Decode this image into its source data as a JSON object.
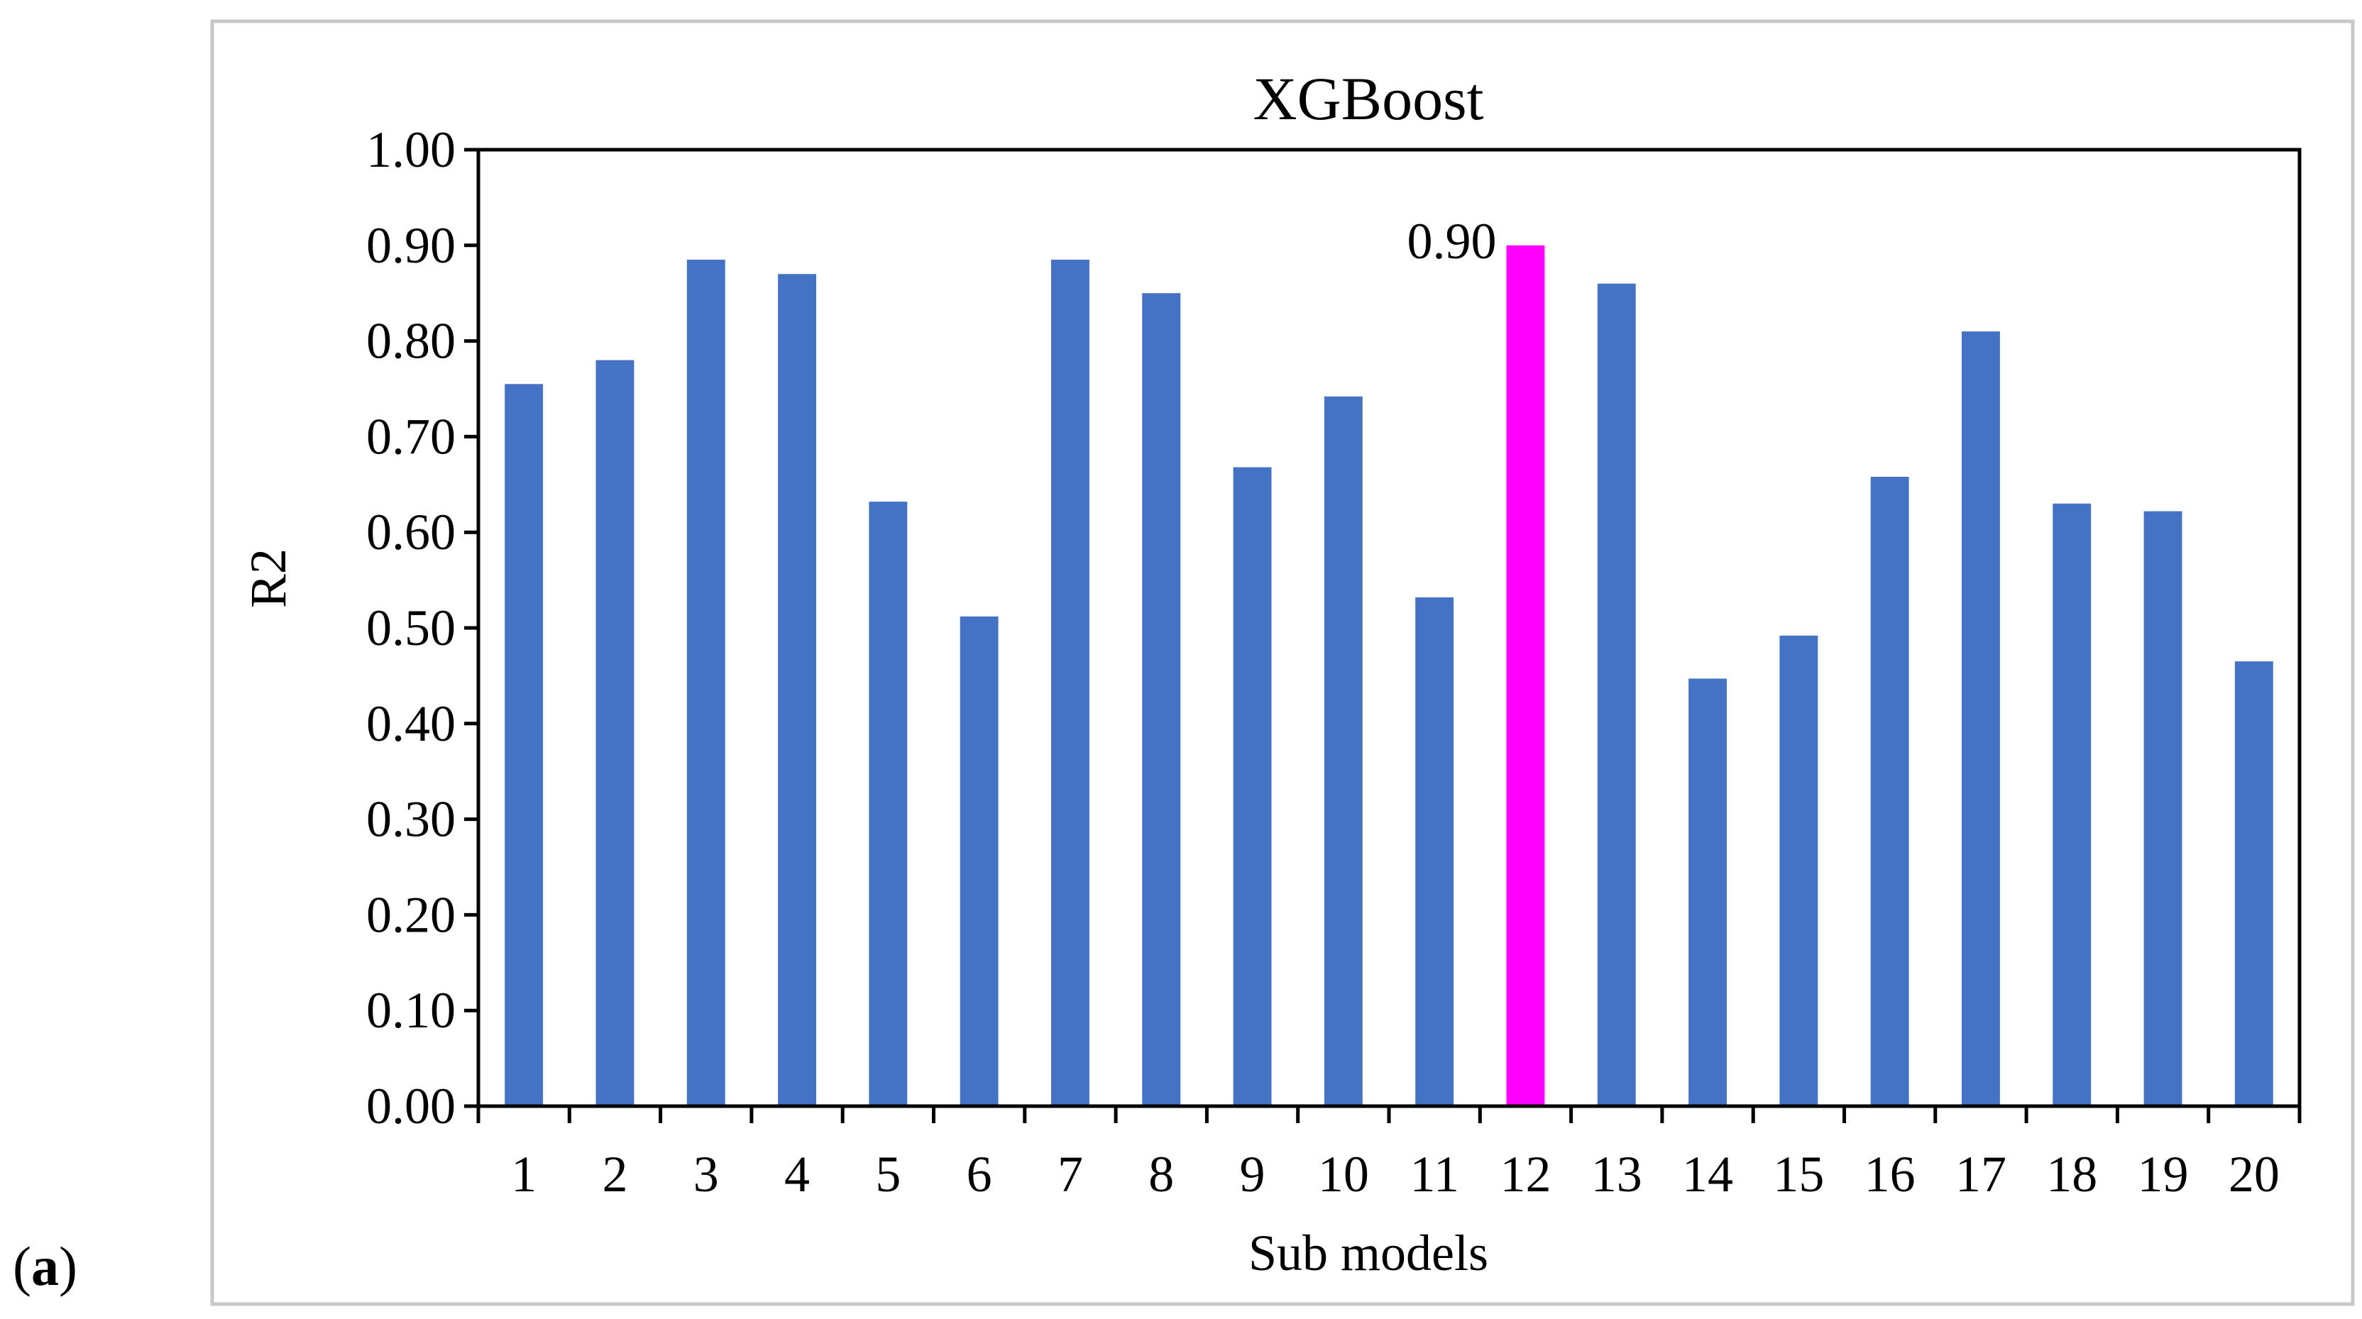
{
  "panel_label": {
    "open": "(",
    "letter": "a",
    "close": ")"
  },
  "chart_data": {
    "type": "bar",
    "title": "XGBoost",
    "xlabel": "Sub models",
    "ylabel": "R2",
    "ylim": [
      0,
      1.0
    ],
    "yticks": [
      "0.00",
      "0.10",
      "0.20",
      "0.30",
      "0.40",
      "0.50",
      "0.60",
      "0.70",
      "0.80",
      "0.90",
      "1.00"
    ],
    "categories": [
      "1",
      "2",
      "3",
      "4",
      "5",
      "6",
      "7",
      "8",
      "9",
      "10",
      "11",
      "12",
      "13",
      "14",
      "15",
      "16",
      "17",
      "18",
      "19",
      "20"
    ],
    "values": [
      0.755,
      0.78,
      0.885,
      0.87,
      0.632,
      0.512,
      0.885,
      0.85,
      0.668,
      0.742,
      0.532,
      0.9,
      0.86,
      0.447,
      0.492,
      0.658,
      0.81,
      0.63,
      0.622,
      0.465
    ],
    "highlight_index": 11,
    "highlight_label": "0.90",
    "bar_color": "#4472C4",
    "highlight_color": "#FF00FF",
    "grid": false,
    "legend": "none"
  }
}
